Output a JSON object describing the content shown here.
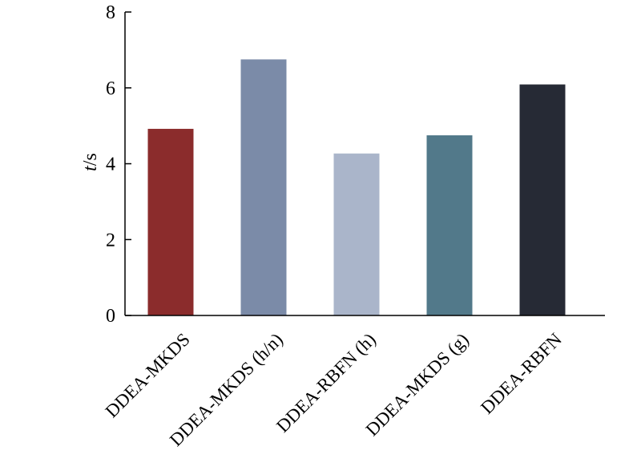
{
  "chart_data": {
    "type": "bar",
    "categories": [
      "DDEA-MKDS",
      "DDEA-MKDS (h/n)",
      "DDEA-RBFN (h)",
      "DDEA-MKDS (g)",
      "DDEA-RBFN"
    ],
    "values": [
      4.92,
      6.75,
      4.27,
      4.75,
      6.09
    ],
    "colors": [
      "#8b2c2c",
      "#7b8ba8",
      "#aab5ca",
      "#52798a",
      "#262a35"
    ],
    "ylabel_italic": "t",
    "ylabel_rest": "/s",
    "ylim": [
      0,
      8
    ],
    "yticks": [
      0,
      2,
      4,
      6,
      8
    ],
    "grid": false,
    "legend": "none"
  }
}
